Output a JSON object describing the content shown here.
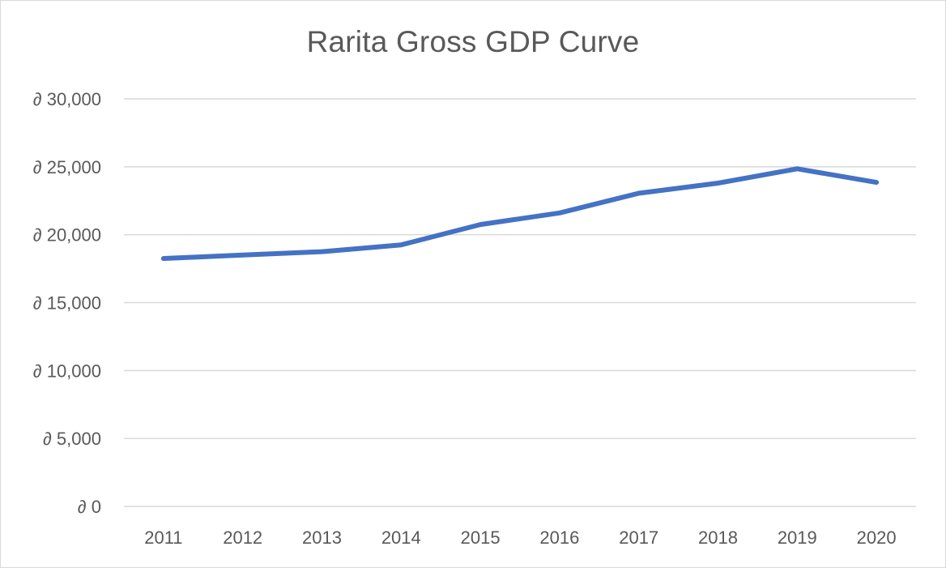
{
  "chart_data": {
    "type": "line",
    "title": "Rarita Gross GDP Curve",
    "xlabel": "",
    "ylabel": "",
    "categories": [
      "2011",
      "2012",
      "2013",
      "2014",
      "2015",
      "2016",
      "2017",
      "2018",
      "2019",
      "2020"
    ],
    "series": [
      {
        "values": [
          18250,
          18500,
          18750,
          19250,
          20750,
          21600,
          23050,
          23800,
          24850,
          23850
        ],
        "color": "#4472c4"
      }
    ],
    "ylim": [
      0,
      30000
    ],
    "y_ticks": [
      {
        "value": 0,
        "label": "∂ 0"
      },
      {
        "value": 5000,
        "label": "∂ 5,000"
      },
      {
        "value": 10000,
        "label": "∂ 10,000"
      },
      {
        "value": 15000,
        "label": "∂ 15,000"
      },
      {
        "value": 20000,
        "label": "∂ 20,000"
      },
      {
        "value": 25000,
        "label": "∂ 25,000"
      },
      {
        "value": 30000,
        "label": "∂ 30,000"
      }
    ],
    "grid": true,
    "legend": "none"
  }
}
